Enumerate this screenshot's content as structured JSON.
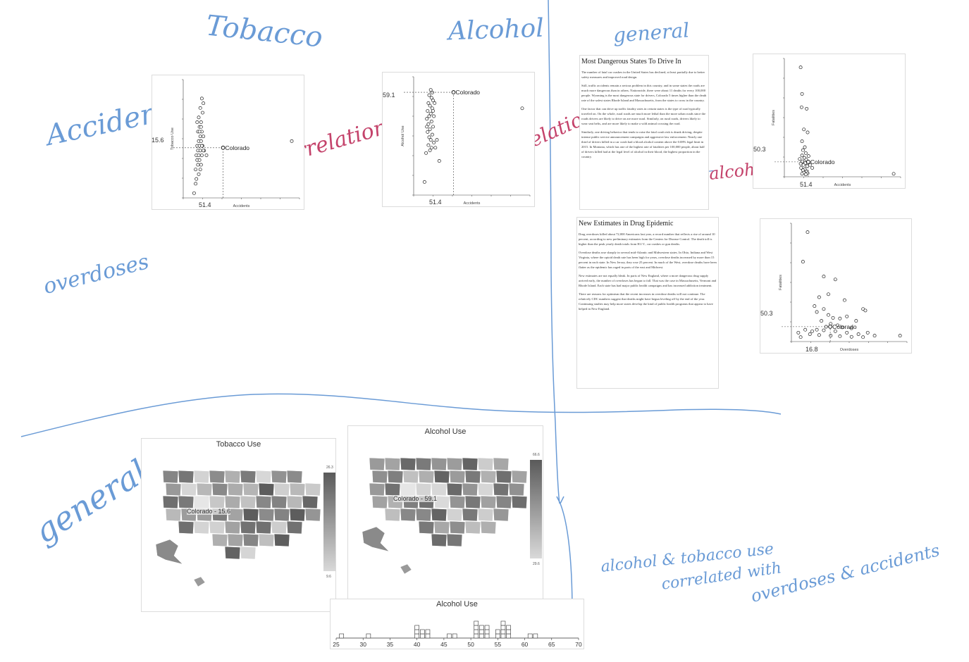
{
  "annotations": {
    "tobacco": "Tobacco",
    "alcohol": "Alcohol",
    "general_top": "general",
    "accidents": "Accidents",
    "overdoses": "overdoses",
    "general_left": "general",
    "no_corr_1": "no correlation",
    "no_corr_2": "no correlation",
    "alcohol_note": "alcohol!",
    "summary_line1": "alcohol & tobacco use",
    "summary_line2": "correlated with",
    "summary_line3": "overdoses & accidents"
  },
  "scatter_tobacco": {
    "xlabel": "Accidents",
    "ylabel": "Tobacco Use",
    "highlight_label": "Colorado",
    "x_readout": "51.4",
    "y_readout": "15.6"
  },
  "scatter_alcohol": {
    "xlabel": "Accidents",
    "ylabel": "Alcohol Use",
    "highlight_label": "Colorado",
    "x_readout": "51.4",
    "y_readout": "59.1"
  },
  "scatter_fatalities": {
    "xlabel": "Accidents",
    "ylabel": "Fatalities",
    "highlight_label": "Colorado",
    "x_readout": "51.4",
    "y_readout": "50.3"
  },
  "scatter_overdoses": {
    "xlabel": "Overdoses",
    "ylabel": "Fatalities",
    "highlight_label": "Colorado",
    "x_readout": "16.8",
    "y_readout": "50.3"
  },
  "doc1": {
    "title": "Most Dangerous States To Drive In",
    "p1": "The number of fatal car crashes in the United States has declined, at least partially due to better safety measures and improved road design.",
    "p2": "Still, traffic accidents remain a serious problem in this country, and in some states the roads are much more dangerous than in others. Nationwide, there were about 11 deaths for every 100,000 people. Wyoming is the most dangerous state for drivers, Colorado 5 times higher than the death rate of the safest states Rhode Island and Massachusetts, from the states to cross in the country.",
    "p3": "One factor that can drive up traffic fatality rates in certain states is the type of road typically traveled on. On the whole, rural roads are much more lethal than the more urban roads since the roads drivers are likely to drive on are more rural. Similarly, on rural roads, drivers likely to wear seat belts, and are more likely to make a wild animal crossing the road.",
    "p4": "Similarly, one driving behavior that tends to raise the fatal crash risk is drunk driving, despite intense public service announcement campaigns and aggressive law enforcement. Nearly one third of drivers killed in a car crash had a blood alcohol content above the 0.08% legal limit in 2015. In Montana, which has one of the highest rate of fatalities per 100,000 people, about half of drivers killed had at the legal level of alcohol in their blood, the highest proportion in the country."
  },
  "doc2": {
    "title": "New Estimates in Drug Epidemic",
    "p1": "Drug overdoses killed about 72,000 Americans last year, a record number that reflects a rise of around 10 percent, according to new preliminary estimates from the Centers for Disease Control. The death toll is higher than the peak yearly death totals from H.I.V., car crashes or gun deaths.",
    "p2": "Overdose deaths rose sharply in several mid-Atlantic and Midwestern states. In Ohio, Indiana and West Virginia, where the opioid death rate has been high for years, overdose deaths increased by more than 15 percent in each state. In New Jersey, they rose 25 percent. In much of the West, overdose deaths have been flatter as the epidemic has raged in parts of the east and Midwest.",
    "p3": "New estimates are not equally bleak. In parts of New England, where a more dangerous drug supply arrived early, the number of overdoses has begun to fall. That was the case in Massachusetts, Vermont and Rhode Island. Each state has had major public health campaigns and has increased addiction treatment.",
    "p4": "There are reasons for optimism that the recent increases in overdose deaths will not continue. The relatively CDC numbers suggest that deaths might have begun leveling off by the end of the year. Continuing studies may help more states develop the kind of public health programs that appear to have helped in New England."
  },
  "map_tobacco": {
    "title": "Tobacco Use",
    "highlight_label": "Colorado - 15.6",
    "legend_max": "26.3",
    "legend_min": "9.6"
  },
  "map_alcohol": {
    "title": "Alcohol Use",
    "highlight_label": "Colorado - 59.1",
    "legend_max": "66.6",
    "legend_min": "29.6"
  },
  "chart_data": [
    {
      "type": "scatter",
      "title": "",
      "xlabel": "Accidents",
      "ylabel": "Tobacco Use",
      "xlim": [
        0,
        150
      ],
      "ylim": [
        5,
        30
      ],
      "highlight": {
        "label": "Colorado",
        "x": 51.4,
        "y": 15.6
      },
      "points": [
        [
          24,
          26
        ],
        [
          26,
          25
        ],
        [
          22,
          24
        ],
        [
          25,
          23
        ],
        [
          20,
          22
        ],
        [
          23,
          21
        ],
        [
          21,
          20
        ],
        [
          24,
          19
        ],
        [
          19,
          19
        ],
        [
          22,
          18
        ],
        [
          26,
          18
        ],
        [
          20,
          17
        ],
        [
          23,
          17
        ],
        [
          18,
          16
        ],
        [
          21,
          16
        ],
        [
          25,
          16
        ],
        [
          19,
          15
        ],
        [
          22,
          15
        ],
        [
          27,
          15
        ],
        [
          17,
          14
        ],
        [
          20,
          14
        ],
        [
          24,
          14
        ],
        [
          18,
          13
        ],
        [
          21,
          13
        ],
        [
          23,
          12
        ],
        [
          19,
          12
        ],
        [
          22,
          11
        ],
        [
          16,
          11
        ],
        [
          20,
          10
        ],
        [
          17,
          9
        ],
        [
          24,
          16
        ],
        [
          26,
          15
        ],
        [
          21,
          19
        ],
        [
          23,
          20
        ],
        [
          18,
          21
        ],
        [
          30,
          14
        ],
        [
          16,
          8
        ],
        [
          14,
          6
        ],
        [
          140,
          17
        ]
      ]
    },
    {
      "type": "scatter",
      "title": "",
      "xlabel": "Accidents",
      "ylabel": "Alcohol Use",
      "xlim": [
        0,
        150
      ],
      "ylim": [
        20,
        65
      ],
      "highlight": {
        "label": "Colorado",
        "x": 51.4,
        "y": 59.1
      },
      "points": [
        [
          22,
          60
        ],
        [
          24,
          59
        ],
        [
          20,
          58
        ],
        [
          23,
          57
        ],
        [
          25,
          56
        ],
        [
          19,
          55
        ],
        [
          21,
          54
        ],
        [
          24,
          53
        ],
        [
          18,
          52
        ],
        [
          22,
          51
        ],
        [
          20,
          50
        ],
        [
          26,
          50
        ],
        [
          17,
          49
        ],
        [
          23,
          48
        ],
        [
          19,
          47
        ],
        [
          25,
          46
        ],
        [
          21,
          45
        ],
        [
          18,
          44
        ],
        [
          24,
          43
        ],
        [
          20,
          42
        ],
        [
          22,
          41
        ],
        [
          26,
          40
        ],
        [
          19,
          39
        ],
        [
          23,
          38
        ],
        [
          21,
          37
        ],
        [
          17,
          46
        ],
        [
          25,
          52
        ],
        [
          27,
          55
        ],
        [
          30,
          41
        ],
        [
          28,
          38
        ],
        [
          33,
          33
        ],
        [
          16,
          36
        ],
        [
          14,
          25
        ],
        [
          140,
          53
        ]
      ]
    },
    {
      "type": "scatter",
      "title": "",
      "xlabel": "Accidents",
      "ylabel": "Fatalities",
      "xlim": [
        0,
        250
      ],
      "ylim": [
        0,
        400
      ],
      "highlight": {
        "label": "Colorado",
        "x": 51.4,
        "y": 50.3
      },
      "points": [
        [
          35,
          370
        ],
        [
          38,
          280
        ],
        [
          37,
          235
        ],
        [
          48,
          230
        ],
        [
          42,
          160
        ],
        [
          50,
          150
        ],
        [
          38,
          120
        ],
        [
          44,
          100
        ],
        [
          40,
          90
        ],
        [
          46,
          80
        ],
        [
          38,
          72
        ],
        [
          43,
          64
        ],
        [
          47,
          58
        ],
        [
          39,
          52
        ],
        [
          45,
          46
        ],
        [
          41,
          40
        ],
        [
          49,
          36
        ],
        [
          36,
          30
        ],
        [
          44,
          26
        ],
        [
          40,
          22
        ],
        [
          48,
          18
        ],
        [
          42,
          14
        ],
        [
          50,
          12
        ],
        [
          38,
          10
        ],
        [
          46,
          8
        ],
        [
          52,
          70
        ],
        [
          55,
          40
        ],
        [
          60,
          30
        ],
        [
          33,
          60
        ],
        [
          35,
          44
        ],
        [
          235,
          10
        ]
      ]
    },
    {
      "type": "scatter",
      "title": "",
      "xlabel": "Overdoses",
      "ylabel": "Fatalities",
      "xlim": [
        0,
        50
      ],
      "ylim": [
        0,
        400
      ],
      "highlight": {
        "label": "Colorado",
        "x": 16.8,
        "y": 50.3
      },
      "points": [
        [
          7,
          370
        ],
        [
          5,
          270
        ],
        [
          14,
          220
        ],
        [
          19,
          210
        ],
        [
          12,
          150
        ],
        [
          16,
          160
        ],
        [
          23,
          140
        ],
        [
          10,
          120
        ],
        [
          14,
          110
        ],
        [
          11,
          100
        ],
        [
          16,
          90
        ],
        [
          18,
          80
        ],
        [
          21,
          78
        ],
        [
          24,
          85
        ],
        [
          28,
          70
        ],
        [
          13,
          70
        ],
        [
          17,
          60
        ],
        [
          20,
          55
        ],
        [
          15,
          50
        ],
        [
          22,
          48
        ],
        [
          26,
          45
        ],
        [
          31,
          110
        ],
        [
          32,
          105
        ],
        [
          6,
          40
        ],
        [
          9,
          35
        ],
        [
          11,
          40
        ],
        [
          14,
          38
        ],
        [
          19,
          35
        ],
        [
          24,
          30
        ],
        [
          29,
          25
        ],
        [
          33,
          30
        ],
        [
          3,
          30
        ],
        [
          8,
          25
        ],
        [
          12,
          22
        ],
        [
          17,
          20
        ],
        [
          21,
          18
        ],
        [
          26,
          16
        ],
        [
          31,
          15
        ],
        [
          36,
          20
        ],
        [
          47,
          20
        ],
        [
          4,
          15
        ]
      ]
    },
    {
      "type": "heatmap",
      "title": "Tobacco Use",
      "legend_range": [
        9.6,
        26.3
      ],
      "highlight": {
        "label": "Colorado",
        "value": 15.6
      }
    },
    {
      "type": "heatmap",
      "title": "Alcohol Use",
      "legend_range": [
        29.6,
        66.6
      ],
      "highlight": {
        "label": "Colorado",
        "value": 59.1
      }
    },
    {
      "type": "bar",
      "title": "Alcohol Use",
      "xlim": [
        25,
        70
      ],
      "ticks": [
        25,
        30,
        35,
        40,
        45,
        50,
        55,
        60,
        65,
        70
      ],
      "bins": [
        [
          26,
          1
        ],
        [
          31,
          1
        ],
        [
          40,
          3
        ],
        [
          41,
          2
        ],
        [
          42,
          2
        ],
        [
          46,
          1
        ],
        [
          47,
          1
        ],
        [
          51,
          4
        ],
        [
          52,
          3
        ],
        [
          53,
          3
        ],
        [
          55,
          2
        ],
        [
          56,
          4
        ],
        [
          57,
          3
        ],
        [
          61,
          1
        ],
        [
          62,
          1
        ]
      ]
    }
  ]
}
